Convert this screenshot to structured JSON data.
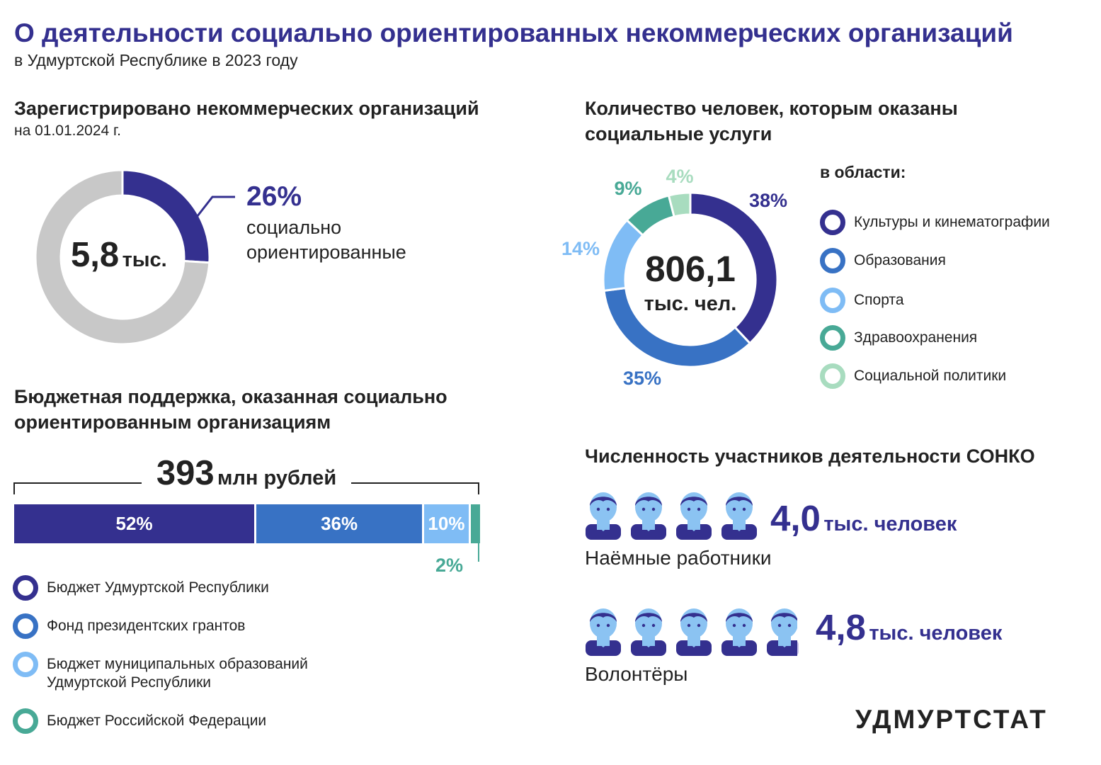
{
  "header": {
    "title": "О деятельности социально ориентированных некоммерческих организаций",
    "subtitle": "в Удмуртской Республике в 2023 году"
  },
  "registered": {
    "heading": "Зарегистрировано некоммерческих организаций",
    "date": "на 01.01.2024 г.",
    "center_value": "5,8",
    "center_unit": "тыс.",
    "share_label": "26%",
    "share_text_1": "социально",
    "share_text_2": "ориентированные"
  },
  "services": {
    "heading_1": "Количество человек, которым оказаны",
    "heading_2": "социальные услуги",
    "legend_title": "в области:",
    "center_value": "806,1",
    "center_unit": "тыс. чел."
  },
  "budget": {
    "heading_1": "Бюджетная поддержка, оказанная социально",
    "heading_2": "ориентированным организациям",
    "total_value": "393",
    "total_unit": "млн рублей"
  },
  "participants": {
    "heading": "Численность участников деятельности СОНКО",
    "employees_value": "4,0",
    "employees_unit": "тыс. человек",
    "employees_label": "Наёмные работники",
    "volunteers_value": "4,8",
    "volunteers_unit": "тыс. человек",
    "volunteers_label": "Волонтёры"
  },
  "brand": "УДМУРТСТАТ",
  "colors": {
    "dark_blue": "#34308f",
    "mid_blue": "#3872c4",
    "light_blue": "#7fbcf5",
    "teal": "#48a996",
    "mint": "#a8dcbf",
    "gray": "#c8c8c8"
  },
  "chart_data": [
    {
      "type": "pie",
      "categories": [
        "социально ориентированные",
        ""
      ],
      "values": [
        26,
        74
      ]
    },
    {
      "type": "pie",
      "categories": [
        "Культуры и кинематографии",
        "Образования",
        "Спорта",
        "Здравоохранения",
        "Социальной политики"
      ],
      "values": [
        38,
        35,
        14,
        9,
        4
      ],
      "labels": [
        "38%",
        "35%",
        "14%",
        "9%",
        "4%"
      ]
    },
    {
      "type": "bar",
      "categories": [
        "Бюджет Удмуртской Республики",
        "Фонд президентских грантов",
        "Бюджет муниципальных образований Удмуртской Республики",
        "Бюджет Российской Федерации"
      ],
      "legend": [
        "Бюджет Удмуртской Республики",
        "Фонд президентских грантов",
        "Бюджет муниципальных образований",
        "Удмуртской Республики",
        "Бюджет Российской Федерации"
      ],
      "values": [
        52,
        36,
        10,
        2
      ],
      "labels": [
        "52%",
        "36%",
        "10%",
        "2%"
      ]
    }
  ]
}
